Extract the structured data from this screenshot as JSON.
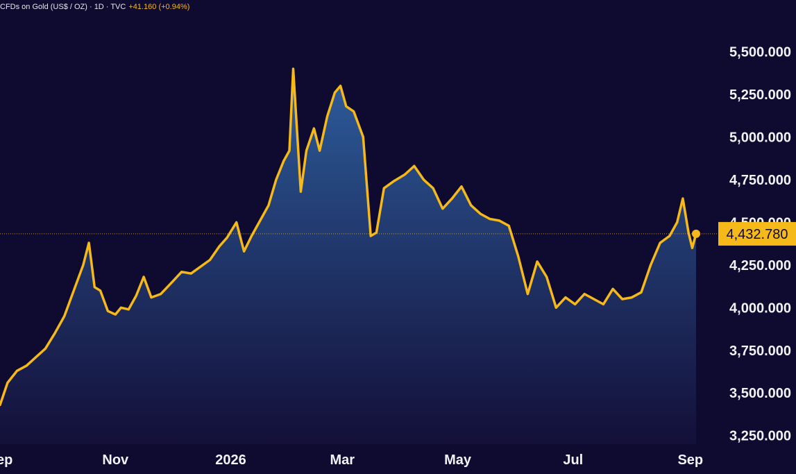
{
  "header": {
    "symbol_text": "CFDs on Gold (US$ / OZ) · 1D · TVC",
    "change_text": "+41.160 (+0.94%)"
  },
  "last_price": {
    "label": "4,432.780",
    "value": 4432.78
  },
  "colors": {
    "background": "#0f0a30",
    "line": "#f6b91a",
    "area_top": "#2f62a2",
    "area_bottom": "#14103a",
    "text": "#f2f2f6"
  },
  "chart_data": {
    "type": "area",
    "title": "",
    "xlabel": "",
    "ylabel": "",
    "ylim": [
      3200,
      5620
    ],
    "xlim": [
      "2025-09-01",
      "2026-09-12"
    ],
    "grid": false,
    "y_ticks": [
      {
        "value": 5500,
        "label": "5,500.000"
      },
      {
        "value": 5250,
        "label": "5,250.000"
      },
      {
        "value": 5000,
        "label": "5,000.000"
      },
      {
        "value": 4750,
        "label": "4,750.000"
      },
      {
        "value": 4500,
        "label": "4,500.000"
      },
      {
        "value": 4250,
        "label": "4,250.000"
      },
      {
        "value": 4000,
        "label": "4,000.000"
      },
      {
        "value": 3750,
        "label": "3,750.000"
      },
      {
        "value": 3500,
        "label": "3,500.000"
      },
      {
        "value": 3250,
        "label": "3,250.000"
      }
    ],
    "x_ticks": [
      {
        "date": "2025-09-01",
        "label": "Sep"
      },
      {
        "date": "2025-11-01",
        "label": "Nov"
      },
      {
        "date": "2026-01-01",
        "label": "2026"
      },
      {
        "date": "2026-03-01",
        "label": "Mar"
      },
      {
        "date": "2026-05-01",
        "label": "May"
      },
      {
        "date": "2026-07-01",
        "label": "Jul"
      },
      {
        "date": "2026-09-01",
        "label": "Sep"
      }
    ],
    "series": [
      {
        "x": [
          "2025-09-01",
          "2025-09-05",
          "2025-09-10",
          "2025-09-15",
          "2025-09-20",
          "2025-09-25",
          "2025-09-30",
          "2025-10-05",
          "2025-10-10",
          "2025-10-15",
          "2025-10-18",
          "2025-10-21",
          "2025-10-24",
          "2025-10-28",
          "2025-11-01",
          "2025-11-04",
          "2025-11-08",
          "2025-11-12",
          "2025-11-16",
          "2025-11-20",
          "2025-11-25",
          "2025-12-01",
          "2025-12-06",
          "2025-12-11",
          "2025-12-16",
          "2025-12-21",
          "2025-12-26",
          "2025-12-30",
          "2026-01-04",
          "2026-01-08",
          "2026-01-12",
          "2026-01-17",
          "2026-01-21",
          "2026-01-25",
          "2026-01-29",
          "2026-02-01",
          "2026-02-03",
          "2026-02-07",
          "2026-02-10",
          "2026-02-14",
          "2026-02-17",
          "2026-02-21",
          "2026-02-25",
          "2026-02-28",
          "2026-03-03",
          "2026-03-07",
          "2026-03-12",
          "2026-03-16",
          "2026-03-19",
          "2026-03-23",
          "2026-03-28",
          "2026-04-03",
          "2026-04-08",
          "2026-04-13",
          "2026-04-18",
          "2026-04-23",
          "2026-04-28",
          "2026-05-03",
          "2026-05-08",
          "2026-05-13",
          "2026-05-18",
          "2026-05-23",
          "2026-05-28",
          "2026-06-02",
          "2026-06-07",
          "2026-06-12",
          "2026-06-17",
          "2026-06-22",
          "2026-06-27",
          "2026-07-02",
          "2026-07-07",
          "2026-07-12",
          "2026-07-17",
          "2026-07-22",
          "2026-07-27",
          "2026-08-01",
          "2026-08-06",
          "2026-08-11",
          "2026-08-16",
          "2026-08-21",
          "2026-08-25",
          "2026-08-28",
          "2026-08-31",
          "2026-09-02",
          "2026-09-04"
        ],
        "values": [
          3430,
          3560,
          3630,
          3660,
          3710,
          3760,
          3850,
          3950,
          4100,
          4250,
          4380,
          4120,
          4100,
          3980,
          3960,
          4000,
          3990,
          4070,
          4180,
          4060,
          4080,
          4150,
          4210,
          4200,
          4240,
          4280,
          4360,
          4410,
          4500,
          4330,
          4420,
          4520,
          4600,
          4750,
          4860,
          4920,
          5400,
          4680,
          4920,
          5050,
          4920,
          5120,
          5260,
          5300,
          5180,
          5150,
          5000,
          4420,
          4440,
          4700,
          4740,
          4780,
          4830,
          4750,
          4700,
          4580,
          4640,
          4710,
          4600,
          4550,
          4520,
          4510,
          4480,
          4300,
          4080,
          4270,
          4180,
          4000,
          4060,
          4020,
          4080,
          4050,
          4020,
          4110,
          4050,
          4060,
          4090,
          4250,
          4380,
          4420,
          4500,
          4640,
          4440,
          4350,
          4432.78
        ]
      }
    ]
  }
}
